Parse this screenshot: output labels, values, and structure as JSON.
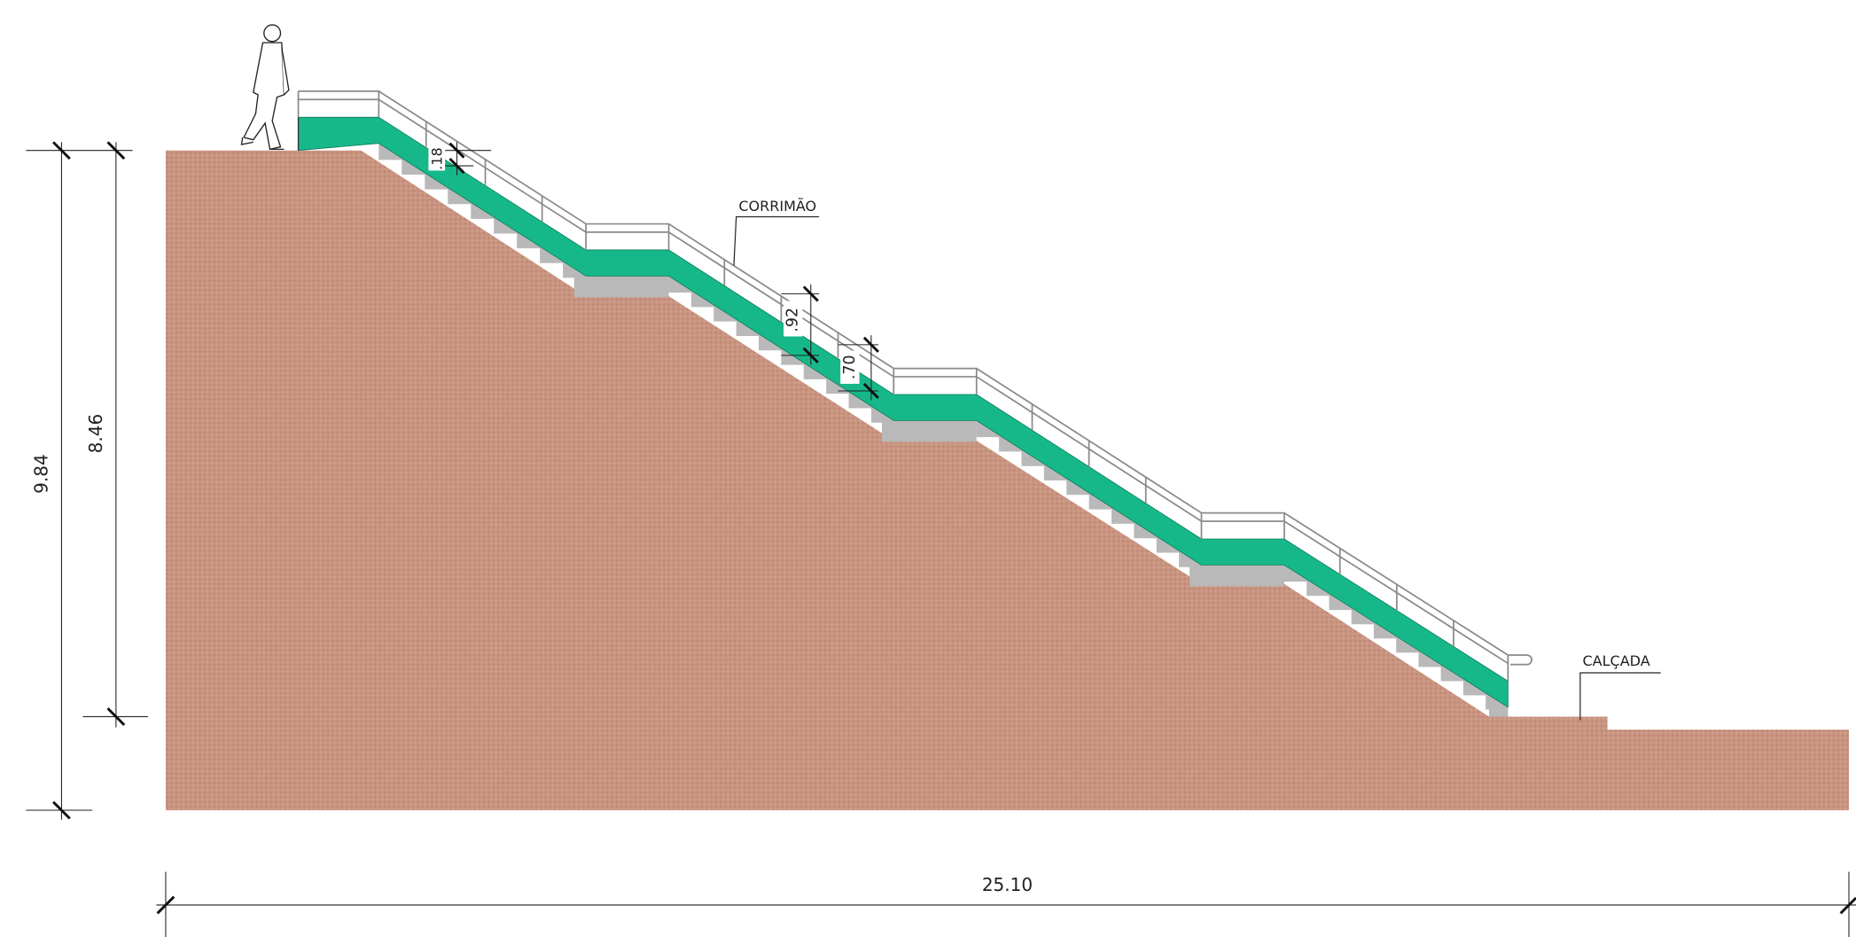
{
  "labels": {
    "handrail": "CORRIMÃO",
    "sidewalk": "CALÇADA"
  },
  "dimensions": {
    "total_height": "9.84",
    "stair_height": "8.46",
    "total_length": "25.10",
    "riser": ".18",
    "handrail_height": ".92",
    "lower_rail_height": ".70"
  }
}
